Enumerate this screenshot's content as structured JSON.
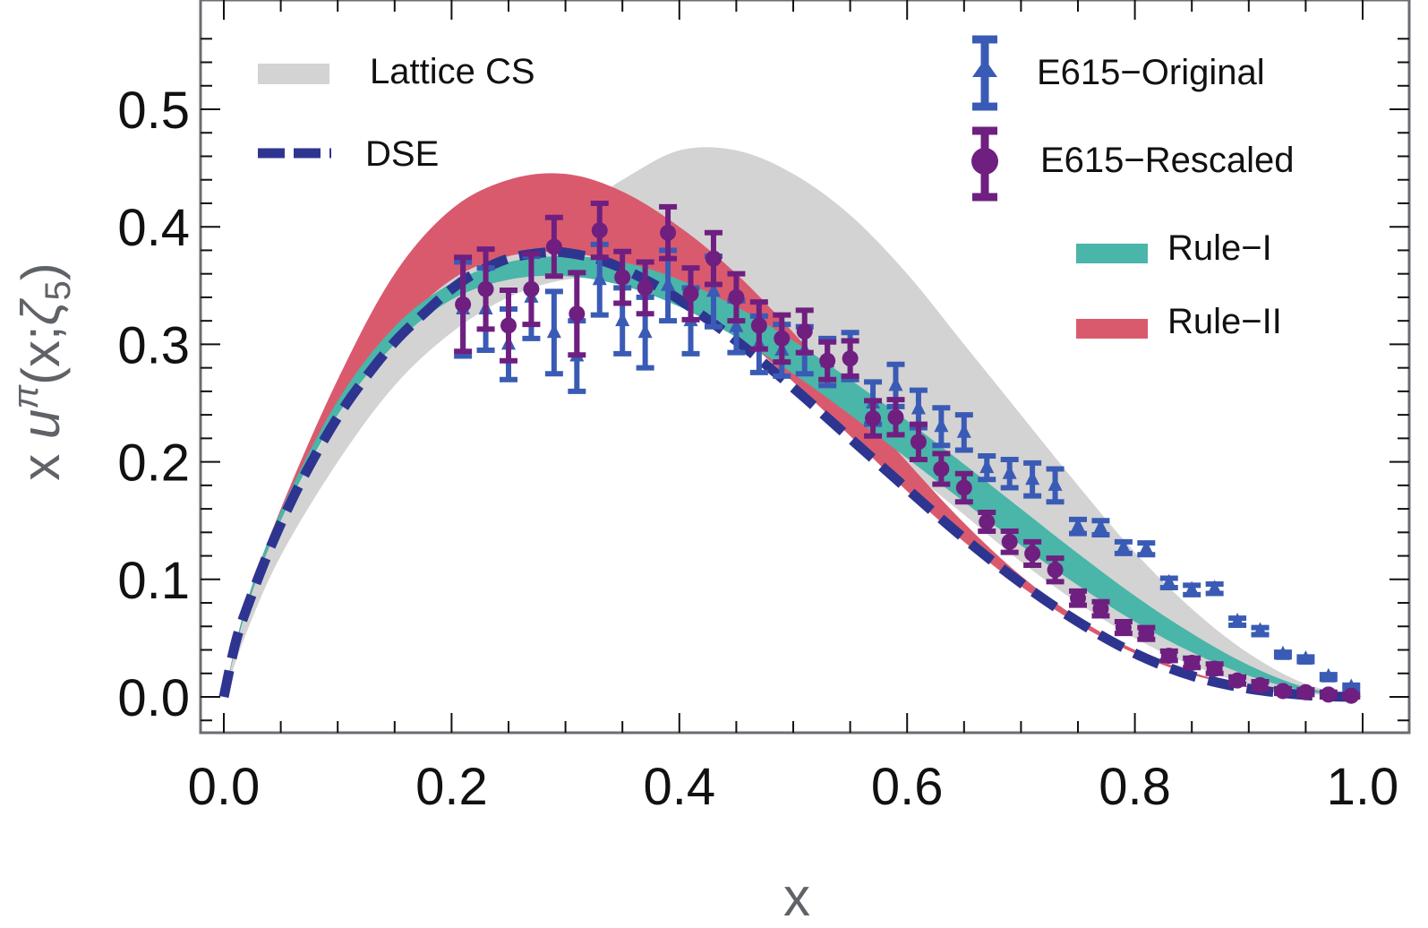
{
  "chart_data": {
    "type": "scatter",
    "title": "",
    "xlabel": "x",
    "ylabel": "x u^π(x;ζ5)",
    "ylabel_parts": {
      "prefix": "x ",
      "func": "u",
      "sup": "π",
      "args_open": "(x;",
      "zeta": "ζ",
      "sub": "5",
      "args_close": ")"
    },
    "xlim": [
      0.0,
      1.0
    ],
    "ylim": [
      -0.03,
      0.593
    ],
    "xticks": [
      0.0,
      0.2,
      0.4,
      0.6,
      0.8,
      1.0
    ],
    "xtick_labels": [
      "0.0",
      "0.2",
      "0.4",
      "0.6",
      "0.8",
      "1.0"
    ],
    "yticks": [
      0.0,
      0.1,
      0.2,
      0.3,
      0.4,
      0.5
    ],
    "ytick_labels": [
      "0.0",
      "0.1",
      "0.2",
      "0.3",
      "0.4",
      "0.5"
    ],
    "x_minor_step": 0.05,
    "y_minor_step": 0.02,
    "grid": false,
    "colors": {
      "lattice": "#d3d3d3",
      "rule1": "#4ab5a9",
      "rule2": "#da5a6d",
      "dse": "#2e3590",
      "original": "#3a5bb5",
      "rescaled": "#6f1f80",
      "frame": "#6a6d72"
    },
    "legend": {
      "left_placement": "top-left",
      "right_placement": "top-right",
      "entries": [
        {
          "key": "lattice",
          "label": "Lattice CS",
          "style": "band"
        },
        {
          "key": "dse",
          "label": "DSE",
          "style": "dashed"
        },
        {
          "key": "original",
          "label": "E615−Original",
          "style": "triangle-errorbar"
        },
        {
          "key": "rescaled",
          "label": "E615−Rescaled",
          "style": "circle-errorbar"
        },
        {
          "key": "rule1",
          "label": "Rule−I",
          "style": "band"
        },
        {
          "key": "rule2",
          "label": "Rule−II",
          "style": "band"
        }
      ]
    },
    "bands": [
      {
        "name": "Lattice CS",
        "key": "lattice",
        "x": [
          0.0,
          0.02,
          0.05,
          0.1,
          0.15,
          0.2,
          0.25,
          0.3,
          0.35,
          0.4,
          0.45,
          0.5,
          0.55,
          0.6,
          0.65,
          0.7,
          0.75,
          0.8,
          0.85,
          0.9,
          0.95,
          1.0
        ],
        "lower": [
          0.0,
          0.055,
          0.12,
          0.2,
          0.265,
          0.31,
          0.34,
          0.355,
          0.355,
          0.34,
          0.315,
          0.28,
          0.24,
          0.195,
          0.155,
          0.115,
          0.08,
          0.05,
          0.027,
          0.011,
          0.003,
          0.0
        ],
        "upper": [
          0.0,
          0.075,
          0.15,
          0.24,
          0.31,
          0.37,
          0.41,
          0.41,
          0.44,
          0.465,
          0.465,
          0.445,
          0.41,
          0.36,
          0.3,
          0.24,
          0.18,
          0.123,
          0.075,
          0.037,
          0.011,
          0.0
        ]
      },
      {
        "name": "Rule-II",
        "key": "rule2",
        "x": [
          0.0,
          0.02,
          0.05,
          0.1,
          0.15,
          0.2,
          0.25,
          0.3,
          0.35,
          0.4,
          0.45,
          0.5,
          0.55,
          0.6,
          0.65,
          0.7,
          0.75,
          0.8,
          0.85,
          0.9,
          0.95,
          1.0
        ],
        "lower": [
          0.0,
          0.075,
          0.15,
          0.245,
          0.31,
          0.355,
          0.375,
          0.378,
          0.368,
          0.345,
          0.31,
          0.268,
          0.222,
          0.175,
          0.132,
          0.094,
          0.062,
          0.037,
          0.019,
          0.008,
          0.002,
          0.0
        ],
        "upper": [
          0.0,
          0.08,
          0.16,
          0.27,
          0.36,
          0.415,
          0.44,
          0.445,
          0.43,
          0.4,
          0.36,
          0.31,
          0.255,
          0.2,
          0.148,
          0.103,
          0.067,
          0.04,
          0.021,
          0.009,
          0.002,
          0.0
        ]
      },
      {
        "name": "Rule-I",
        "key": "rule1",
        "x": [
          0.0,
          0.02,
          0.05,
          0.1,
          0.15,
          0.2,
          0.25,
          0.3,
          0.35,
          0.4,
          0.45,
          0.5,
          0.55,
          0.6,
          0.65,
          0.7,
          0.75,
          0.8,
          0.85,
          0.9,
          0.95,
          1.0
        ],
        "lower": [
          0.0,
          0.075,
          0.15,
          0.24,
          0.3,
          0.338,
          0.355,
          0.358,
          0.35,
          0.332,
          0.306,
          0.275,
          0.24,
          0.203,
          0.166,
          0.129,
          0.095,
          0.064,
          0.038,
          0.018,
          0.005,
          0.0
        ],
        "upper": [
          0.0,
          0.08,
          0.158,
          0.252,
          0.315,
          0.352,
          0.37,
          0.375,
          0.37,
          0.355,
          0.332,
          0.303,
          0.27,
          0.235,
          0.198,
          0.16,
          0.122,
          0.086,
          0.054,
          0.027,
          0.008,
          0.0
        ]
      }
    ],
    "lines": [
      {
        "name": "DSE",
        "key": "dse",
        "x": [
          0.0,
          0.01,
          0.02,
          0.04,
          0.06,
          0.08,
          0.1,
          0.12,
          0.15,
          0.18,
          0.2,
          0.22,
          0.25,
          0.28,
          0.3,
          0.33,
          0.36,
          0.4,
          0.45,
          0.5,
          0.55,
          0.6,
          0.65,
          0.7,
          0.75,
          0.8,
          0.85,
          0.9,
          0.95,
          0.98,
          1.0
        ],
        "y": [
          0.0,
          0.045,
          0.075,
          0.125,
          0.168,
          0.205,
          0.238,
          0.266,
          0.302,
          0.33,
          0.347,
          0.36,
          0.373,
          0.378,
          0.378,
          0.372,
          0.36,
          0.338,
          0.303,
          0.263,
          0.22,
          0.177,
          0.135,
          0.097,
          0.064,
          0.037,
          0.018,
          0.007,
          0.0015,
          0.0002,
          0.0
        ]
      }
    ],
    "series": [
      {
        "name": "E615-Original",
        "key": "original",
        "marker": "triangle",
        "x": [
          0.21,
          0.23,
          0.25,
          0.27,
          0.29,
          0.31,
          0.33,
          0.35,
          0.37,
          0.39,
          0.41,
          0.43,
          0.45,
          0.47,
          0.49,
          0.51,
          0.53,
          0.55,
          0.57,
          0.59,
          0.61,
          0.63,
          0.65,
          0.67,
          0.69,
          0.71,
          0.73,
          0.75,
          0.77,
          0.79,
          0.81,
          0.83,
          0.85,
          0.87,
          0.89,
          0.91,
          0.93,
          0.95,
          0.97,
          0.99
        ],
        "y": [
          0.33,
          0.33,
          0.3,
          0.34,
          0.31,
          0.29,
          0.355,
          0.32,
          0.31,
          0.35,
          0.32,
          0.345,
          0.315,
          0.3,
          0.295,
          0.295,
          0.285,
          0.29,
          0.25,
          0.265,
          0.245,
          0.23,
          0.225,
          0.195,
          0.19,
          0.185,
          0.18,
          0.145,
          0.144,
          0.127,
          0.126,
          0.097,
          0.091,
          0.092,
          0.064,
          0.056,
          0.036,
          0.032,
          0.017,
          0.008
        ],
        "err": [
          0.04,
          0.035,
          0.03,
          0.035,
          0.035,
          0.03,
          0.03,
          0.028,
          0.03,
          0.03,
          0.028,
          0.03,
          0.022,
          0.024,
          0.022,
          0.02,
          0.02,
          0.02,
          0.018,
          0.018,
          0.016,
          0.016,
          0.015,
          0.01,
          0.012,
          0.014,
          0.014,
          0.006,
          0.006,
          0.005,
          0.005,
          0.004,
          0.004,
          0.004,
          0.003,
          0.003,
          0.002,
          0.002,
          0.002,
          0.002
        ]
      },
      {
        "name": "E615-Rescaled",
        "key": "rescaled",
        "marker": "circle",
        "x": [
          0.21,
          0.23,
          0.25,
          0.27,
          0.29,
          0.31,
          0.33,
          0.35,
          0.37,
          0.39,
          0.41,
          0.43,
          0.45,
          0.47,
          0.49,
          0.51,
          0.53,
          0.55,
          0.57,
          0.59,
          0.61,
          0.63,
          0.65,
          0.67,
          0.69,
          0.71,
          0.73,
          0.75,
          0.77,
          0.79,
          0.81,
          0.83,
          0.85,
          0.87,
          0.89,
          0.91,
          0.93,
          0.95,
          0.97,
          0.99
        ],
        "y": [
          0.334,
          0.347,
          0.316,
          0.347,
          0.383,
          0.326,
          0.397,
          0.357,
          0.348,
          0.395,
          0.343,
          0.373,
          0.34,
          0.316,
          0.305,
          0.311,
          0.286,
          0.288,
          0.237,
          0.238,
          0.217,
          0.194,
          0.178,
          0.149,
          0.132,
          0.122,
          0.108,
          0.084,
          0.075,
          0.059,
          0.054,
          0.035,
          0.029,
          0.024,
          0.014,
          0.01,
          0.005,
          0.004,
          0.002,
          0.001
        ],
        "err": [
          0.04,
          0.034,
          0.03,
          0.03,
          0.025,
          0.035,
          0.023,
          0.022,
          0.022,
          0.022,
          0.022,
          0.022,
          0.02,
          0.02,
          0.02,
          0.018,
          0.016,
          0.015,
          0.015,
          0.015,
          0.015,
          0.013,
          0.012,
          0.008,
          0.009,
          0.01,
          0.01,
          0.006,
          0.006,
          0.005,
          0.005,
          0.004,
          0.004,
          0.004,
          0.003,
          0.003,
          0.002,
          0.002,
          0.002,
          0.001
        ]
      }
    ]
  }
}
